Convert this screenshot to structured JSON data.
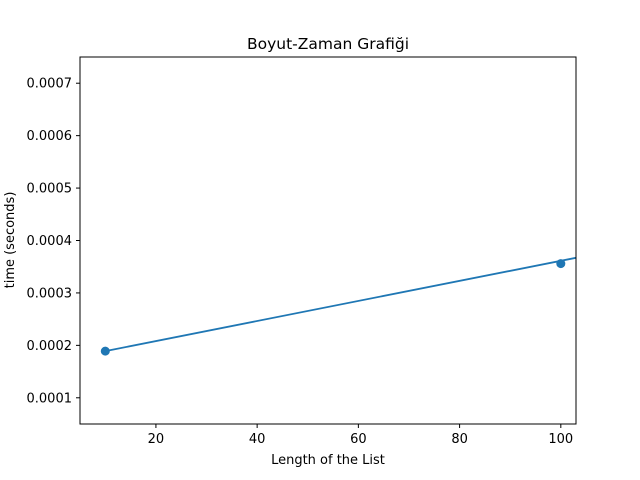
{
  "chart_data": {
    "type": "line",
    "title": "Boyut-Zaman Grafiği",
    "xlabel": "Length of the List",
    "ylabel": "time (seconds)",
    "xlim": [
      5,
      103
    ],
    "ylim": [
      5e-05,
      0.00075
    ],
    "xticks": [
      20,
      40,
      60,
      80,
      100
    ],
    "xtick_labels": [
      "20",
      "40",
      "60",
      "80",
      "100"
    ],
    "yticks": [
      0.0001,
      0.0002,
      0.0003,
      0.0004,
      0.0005,
      0.0006,
      0.0007
    ],
    "ytick_labels": [
      "0.0001",
      "0.0002",
      "0.0003",
      "0.0004",
      "0.0005",
      "0.0006",
      "0.0007"
    ],
    "grid": false,
    "series": [
      {
        "line": {
          "x": [
            10,
            103
          ],
          "y": [
            0.000189,
            0.000367
          ]
        },
        "points": {
          "x": [
            10,
            100
          ],
          "y": [
            0.000189,
            0.000356
          ]
        },
        "color": "#1f77b4"
      }
    ]
  }
}
